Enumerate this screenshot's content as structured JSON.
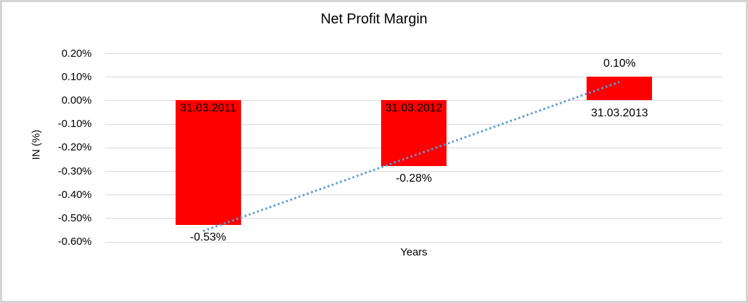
{
  "frame": {
    "border_color": "#d4d4d4",
    "background_color": "#ffffff"
  },
  "chart_data": {
    "type": "bar",
    "title": "Net Profit Margin",
    "xlabel": "Years",
    "ylabel": "IN (%)",
    "categories": [
      "31.03.2011",
      "31.03.2012",
      "31.03.2013"
    ],
    "values": [
      -0.53,
      -0.28,
      0.1
    ],
    "value_labels": [
      "-0.53%",
      "-0.28%",
      "0.10%"
    ],
    "bar_color": "#ff0000",
    "ylim": [
      -0.6,
      0.2
    ],
    "ytick_step": 0.1,
    "ytick_labels": [
      "0.20%",
      "0.10%",
      "0.00%",
      "-0.10%",
      "-0.20%",
      "-0.30%",
      "-0.40%",
      "-0.50%",
      "-0.60%"
    ],
    "grid": true,
    "gridline_color": "#d9d9d9",
    "legend": "none",
    "trendline": {
      "style": "dotted",
      "color": "#5b9bd5",
      "start_value": -0.555,
      "end_value": 0.078
    }
  }
}
